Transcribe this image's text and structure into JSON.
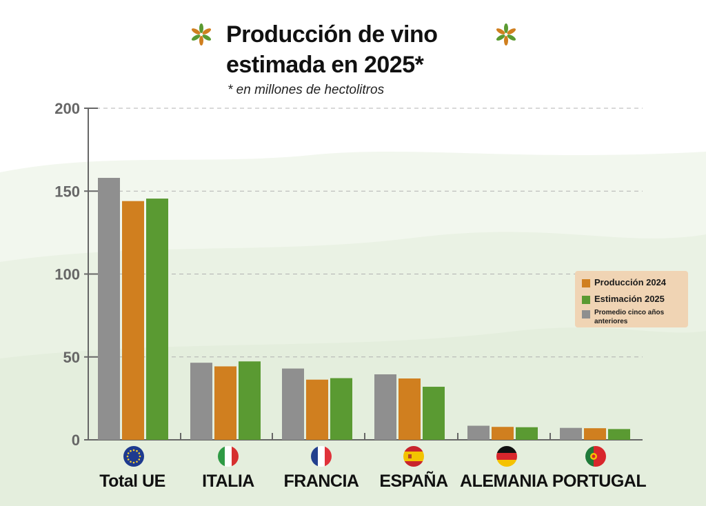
{
  "title_line1": "Producción de vino",
  "title_line2": "estimada en 2025*",
  "subtitle": "* en millones de hectolitros",
  "legend": {
    "produccion_2024": "Producción 2024",
    "estimacion_2025": "Estimación 2025",
    "promedio": "Promedio cinco años anteriores"
  },
  "colors": {
    "promedio": "#8f8f8f",
    "produccion_2024": "#d07f1f",
    "estimacion_2025": "#5a9a32"
  },
  "chart_data": {
    "type": "bar",
    "title": "Producción de vino estimada en 2025*",
    "subtitle": "* en millones de hectolitros",
    "categories": [
      "Total UE",
      "ITALIA",
      "FRANCIA",
      "ESPAÑA",
      "ALEMANIA",
      "PORTUGAL"
    ],
    "series": [
      {
        "name": "Promedio cinco años anteriores",
        "values": [
          158,
          46.5,
          43,
          39.5,
          8.5,
          7.2
        ]
      },
      {
        "name": "Producción 2024",
        "values": [
          144,
          44.3,
          36.3,
          37,
          7.8,
          7
        ]
      },
      {
        "name": "Estimación 2025",
        "values": [
          145.5,
          47.3,
          37.2,
          32,
          7.6,
          6.5
        ]
      }
    ],
    "yticks": [
      0,
      50,
      100,
      150,
      200
    ],
    "ylim": [
      0,
      200
    ],
    "grid": true,
    "legend_position": "right",
    "category_icons": [
      "eu-flag-icon",
      "italy-flag-icon",
      "france-flag-icon",
      "spain-flag-icon",
      "germany-flag-icon",
      "portugal-flag-icon"
    ]
  }
}
